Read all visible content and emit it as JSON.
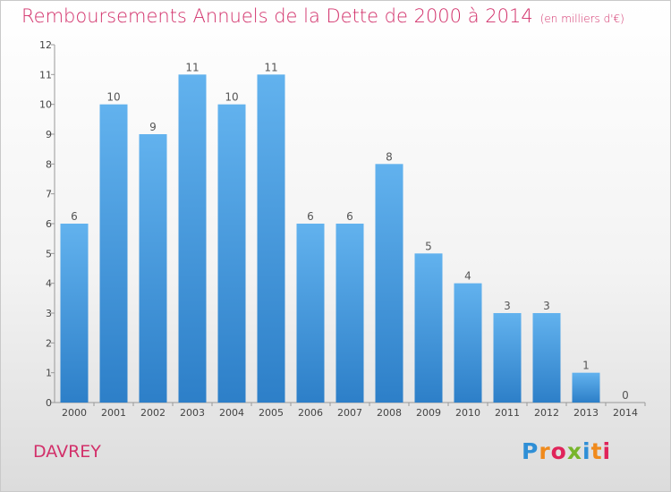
{
  "title": "Remboursements Annuels de la Dette de 2000 à 2014",
  "subtitle": "(en milliers d'€)",
  "commune": "DAVREY",
  "logo": {
    "letters": [
      "P",
      "r",
      "o",
      "x",
      "i",
      "t",
      "i"
    ],
    "colors": [
      "#2f8fd6",
      "#f08a1c",
      "#e0245a",
      "#77b52b",
      "#2f8fd6",
      "#f08a1c",
      "#e0245a"
    ]
  },
  "colors": {
    "bar": "#3e93dc",
    "bar_light": "#62b2ee",
    "accent": "#d2306a"
  },
  "chart_data": {
    "type": "bar",
    "categories": [
      "2000",
      "2001",
      "2002",
      "2003",
      "2004",
      "2005",
      "2006",
      "2007",
      "2008",
      "2009",
      "2010",
      "2011",
      "2012",
      "2013",
      "2014"
    ],
    "values": [
      6,
      10,
      9,
      11,
      10,
      11,
      6,
      6,
      8,
      5,
      4,
      3,
      3,
      1,
      0
    ],
    "ylim": [
      0,
      12
    ],
    "yticks": [
      0,
      1,
      2,
      3,
      4,
      5,
      6,
      7,
      8,
      9,
      10,
      11,
      12
    ],
    "grid": false,
    "data_labels": true
  }
}
